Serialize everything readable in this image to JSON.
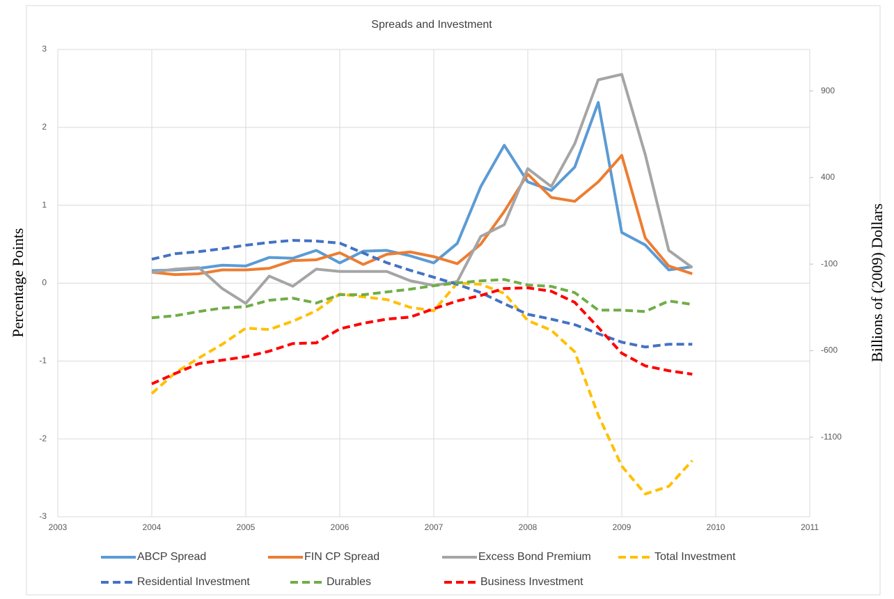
{
  "chart_data": {
    "type": "line",
    "title": "Spreads and Investment",
    "y_label": "Percentage Points",
    "y2_label": "Billions of (2009) Dollars",
    "x": [
      2004,
      2004.25,
      2004.5,
      2004.75,
      2005,
      2005.25,
      2005.5,
      2005.75,
      2006,
      2006.25,
      2006.5,
      2006.75,
      2007,
      2007.25,
      2007.5,
      2007.75,
      2008,
      2008.25,
      2008.5,
      2008.75,
      2009,
      2009.25,
      2009.5,
      2009.75
    ],
    "xlim": [
      2003,
      2011
    ],
    "xticks": [
      2003,
      2004,
      2005,
      2006,
      2007,
      2008,
      2009,
      2010,
      2011
    ],
    "ylim": [
      -3,
      3
    ],
    "yticks": [
      -3,
      -2,
      -1,
      0,
      1,
      2,
      3
    ],
    "y2lim": [
      -1560,
      1140
    ],
    "y2ticks": [
      -1100,
      -600,
      -100,
      400,
      900
    ],
    "grid": true,
    "legend": "bottom",
    "series": [
      {
        "name": "ABCP Spread",
        "color": "#5b9bd5",
        "line_style": "solid",
        "values": [
          0.16,
          0.17,
          0.19,
          0.23,
          0.22,
          0.33,
          0.32,
          0.42,
          0.26,
          0.41,
          0.42,
          0.35,
          0.26,
          0.51,
          1.24,
          1.77,
          1.3,
          1.19,
          1.49,
          2.32,
          0.65,
          0.49,
          0.17,
          0.21
        ]
      },
      {
        "name": "FIN CP Spread",
        "color": "#ed7d31",
        "line_style": "solid",
        "values": [
          0.14,
          0.11,
          0.12,
          0.17,
          0.17,
          0.19,
          0.29,
          0.3,
          0.39,
          0.24,
          0.37,
          0.4,
          0.34,
          0.25,
          0.5,
          0.92,
          1.4,
          1.1,
          1.05,
          1.3,
          1.64,
          0.58,
          0.22,
          0.12
        ]
      },
      {
        "name": "Excess Bond Premium",
        "color": "#a5a5a5",
        "line_style": "solid",
        "values": [
          0.14,
          0.18,
          0.2,
          -0.07,
          -0.26,
          0.09,
          -0.04,
          0.18,
          0.15,
          0.15,
          0.15,
          0.03,
          -0.03,
          0.02,
          0.6,
          0.75,
          1.47,
          1.24,
          1.79,
          2.61,
          2.68,
          1.65,
          0.42,
          0.2
        ]
      },
      {
        "name": "Total Investment",
        "color": "#ffc000",
        "line_style": "dashed",
        "axis": "y2",
        "values": [
          -848,
          -728,
          -643,
          -563,
          -470,
          -478,
          -430,
          -370,
          -273,
          -289,
          -305,
          -350,
          -370,
          -209,
          -217,
          -269,
          -426,
          -482,
          -607,
          -973,
          -1267,
          -1428,
          -1384,
          -1235
        ]
      },
      {
        "name": "Residential Investment",
        "color": "#4472c4",
        "line_style": "dashed",
        "axis": "y2",
        "values": [
          -72,
          -40,
          -28,
          -11,
          9,
          25,
          37,
          33,
          21,
          -36,
          -92,
          -136,
          -176,
          -217,
          -265,
          -329,
          -390,
          -418,
          -450,
          -502,
          -551,
          -579,
          -563,
          -563
        ]
      },
      {
        "name": "Durables",
        "color": "#70ad47",
        "line_style": "dashed",
        "axis": "y2",
        "values": [
          -410,
          -398,
          -374,
          -354,
          -346,
          -309,
          -297,
          -325,
          -277,
          -277,
          -261,
          -245,
          -225,
          -209,
          -197,
          -189,
          -221,
          -229,
          -265,
          -366,
          -366,
          -374,
          -313,
          -333
        ]
      },
      {
        "name": "Business Investment",
        "color": "#ff0000",
        "line_style": "dashed",
        "axis": "y2",
        "values": [
          -792,
          -732,
          -675,
          -655,
          -635,
          -603,
          -559,
          -555,
          -474,
          -442,
          -418,
          -406,
          -358,
          -313,
          -281,
          -241,
          -237,
          -257,
          -321,
          -466,
          -615,
          -688,
          -716,
          -736
        ]
      }
    ]
  }
}
